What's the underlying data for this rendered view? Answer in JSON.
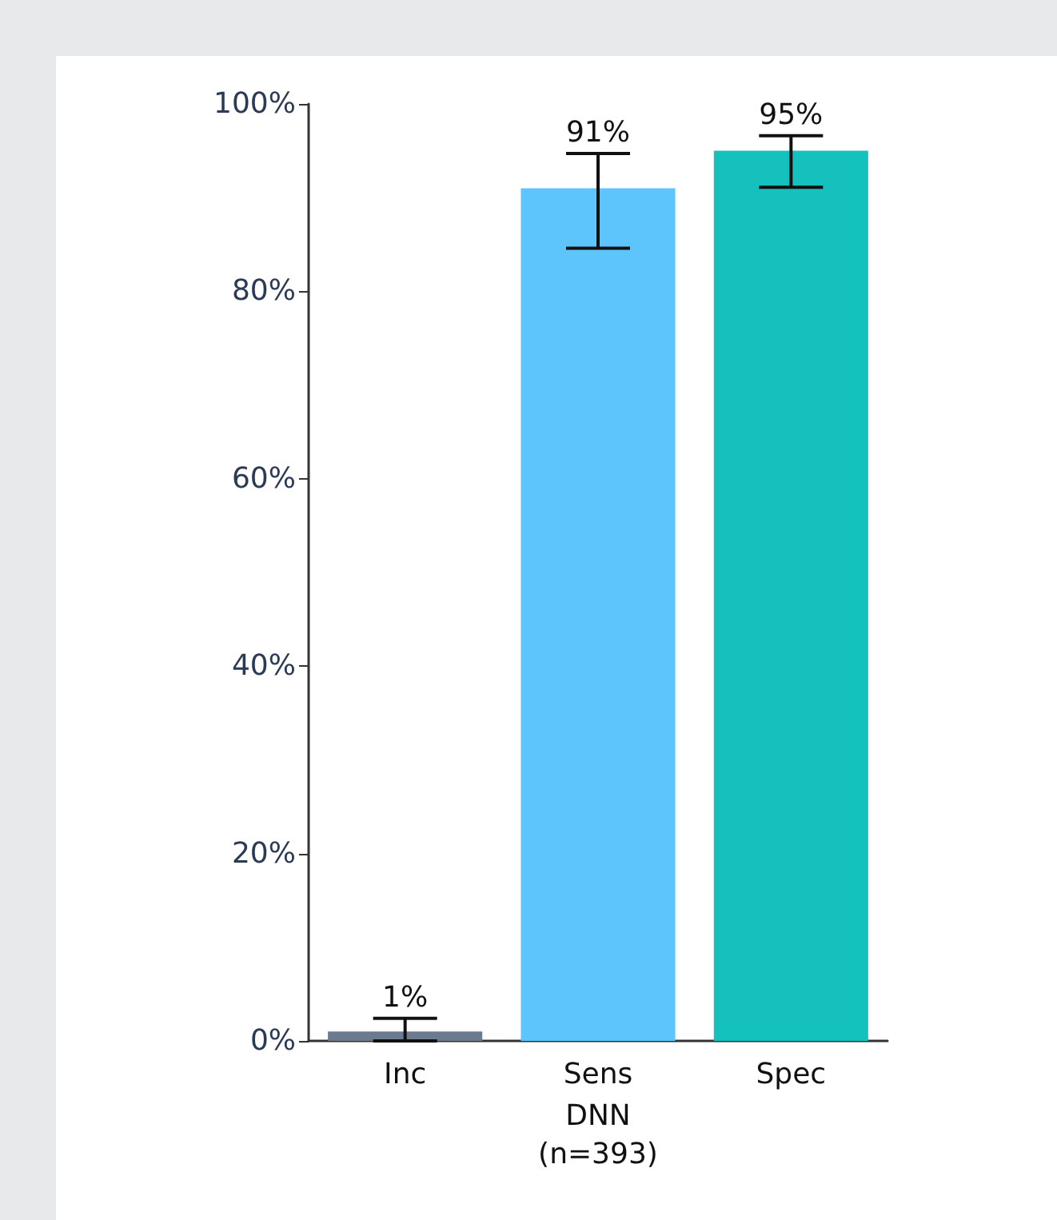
{
  "chart_data": {
    "type": "bar",
    "xlabel": "DNN\n(n=393)",
    "categories": [
      "Inc",
      "Sens",
      "Spec"
    ],
    "values": [
      1,
      91,
      95
    ],
    "colors": [
      "#6b7a8f",
      "#5ec4fc",
      "#14c1bd"
    ],
    "errors": [
      [
        0,
        2.4
      ],
      [
        84.6,
        94.7
      ],
      [
        91.1,
        96.6
      ]
    ],
    "ylim": [
      0,
      100
    ],
    "yticks": [
      {
        "value": 0,
        "label": "0%"
      },
      {
        "value": 20,
        "label": "20%"
      },
      {
        "value": 40,
        "label": "40%"
      },
      {
        "value": 60,
        "label": "60%"
      },
      {
        "value": 80,
        "label": "80%"
      },
      {
        "value": 100,
        "label": "100%"
      }
    ],
    "value_labels": [
      "1%",
      "91%",
      "95%"
    ],
    "grid": false
  }
}
